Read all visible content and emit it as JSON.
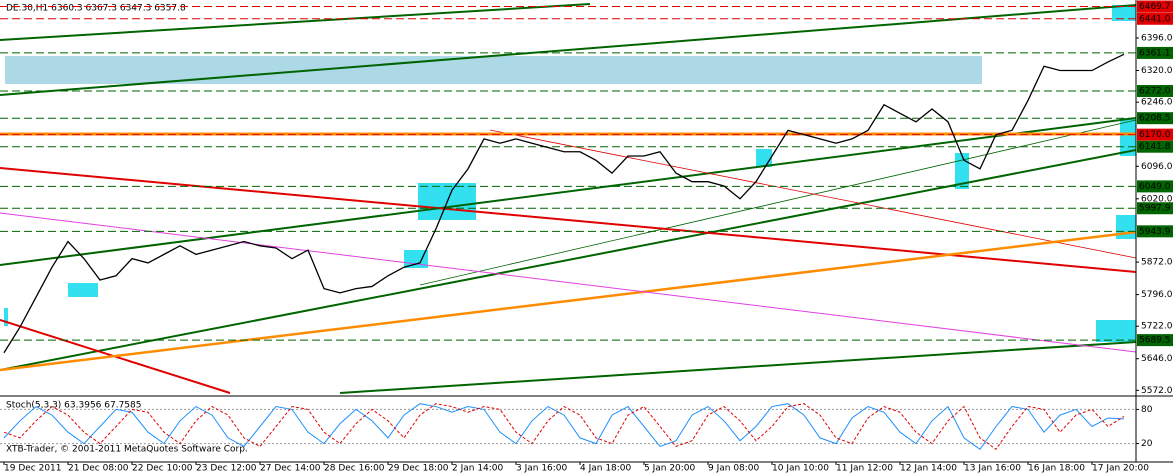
{
  "chart_data": [
    {
      "type": "line",
      "title": "DE.30,H1  6360.3 6367.3 6347.3 6357.8",
      "annotations": [
        "XTB-Trader, © 2001-2011 MetaQuotes Software Corp."
      ],
      "categories": [
        "19 Dec 2011",
        null,
        null,
        null,
        "21 Dec 08:00",
        null,
        null,
        null,
        "22 Dec 10:00",
        null,
        null,
        null,
        "23 Dec 12:00",
        null,
        null,
        null,
        "27 Dec 14:00",
        null,
        null,
        null,
        "28 Dec 16:00",
        null,
        null,
        null,
        "29 Dec 18:00",
        null,
        null,
        null,
        "2 Jan 14:00",
        null,
        null,
        null,
        "3 Jan 16:00",
        null,
        null,
        null,
        "4 Jan 18:00",
        null,
        null,
        null,
        "5 Jan 20:00",
        null,
        null,
        null,
        "9 Jan 08:00",
        null,
        null,
        null,
        "10 Jan 10:00",
        null,
        null,
        null,
        "11 Jan 12:00",
        null,
        null,
        null,
        "12 Jan 14:00",
        null,
        null,
        null,
        "13 Jan 16:00",
        null,
        null,
        null,
        "16 Jan 18:00",
        null,
        null,
        null,
        "17 Jan 20:00",
        null,
        null
      ],
      "series": [
        {
          "color": "#000000",
          "values": [
            5660,
            5720,
            5790,
            5860,
            5920,
            5880,
            5830,
            5840,
            5880,
            5870,
            5890,
            5910,
            5890,
            5900,
            5910,
            5920,
            5910,
            5905,
            5880,
            5900,
            5810,
            5800,
            5810,
            5815,
            5840,
            5860,
            5870,
            5950,
            6040,
            6090,
            6160,
            6150,
            6160,
            6150,
            6140,
            6130,
            6130,
            6110,
            6080,
            6120,
            6120,
            6130,
            6080,
            6060,
            6060,
            6050,
            6020,
            6060,
            6120,
            6180,
            6170,
            6160,
            6150,
            6160,
            6180,
            6240,
            6220,
            6200,
            6230,
            6200,
            6110,
            6090,
            6170,
            6180,
            6250,
            6330,
            6320,
            6320,
            6320,
            6340,
            6357.8
          ]
        }
      ],
      "ylim": [
        5558.8,
        6484.9
      ],
      "yticks": [
        {
          "value": 6396,
          "label": "6396.0"
        },
        {
          "value": 6320,
          "label": "6320.0"
        },
        {
          "value": 6246,
          "label": "6246.0"
        },
        {
          "value": 6096,
          "label": "6096.0"
        },
        {
          "value": 6020,
          "label": "6020.0"
        },
        {
          "value": 5872,
          "label": "5872.0"
        },
        {
          "value": 5796,
          "label": "5796.0"
        },
        {
          "value": 5722,
          "label": "5722.0"
        },
        {
          "value": 5646,
          "label": "5646.0"
        },
        {
          "value": 5572,
          "label": "5572.0"
        }
      ],
      "levels": [
        {
          "value": 6469.7,
          "label": "6469.7",
          "color": "#e00000"
        },
        {
          "value": 6441.0,
          "label": "6441.0",
          "color": "#e00000"
        },
        {
          "value": 6361.1,
          "label": "6361.1",
          "color": "#006400"
        },
        {
          "value": 6272.0,
          "label": "6272.0",
          "color": "#006400"
        },
        {
          "value": 6208.5,
          "label": "6208.5",
          "color": "#006400"
        },
        {
          "value": 6170.0,
          "label": "6170.0",
          "color": "#e00000"
        },
        {
          "value": 6141.8,
          "label": "6141.8",
          "color": "#006400"
        },
        {
          "value": 6049.0,
          "label": "6049.0",
          "color": "#006400"
        },
        {
          "value": 5997.9,
          "label": "5997.9",
          "color": "#006400"
        },
        {
          "value": 5943.9,
          "label": "5943.9",
          "color": "#006400"
        },
        {
          "value": 5689.5,
          "label": "5689.5",
          "color": "#006400"
        }
      ]
    },
    {
      "type": "line",
      "title": "Stoch(5,3,3) 63.3956 67.7585",
      "series": [
        {
          "color": "#1e90ff",
          "values": [
            30,
            60,
            85,
            70,
            40,
            20,
            50,
            80,
            75,
            40,
            20,
            60,
            85,
            70,
            30,
            15,
            50,
            85,
            80,
            40,
            20,
            55,
            80,
            60,
            30,
            70,
            90,
            85,
            75,
            85,
            80,
            40,
            20,
            60,
            85,
            70,
            30,
            20,
            70,
            85,
            50,
            15,
            25,
            70,
            85,
            60,
            25,
            50,
            85,
            90,
            70,
            30,
            20,
            65,
            85,
            75,
            40,
            20,
            60,
            85,
            30,
            10,
            50,
            85,
            80,
            40,
            70,
            80,
            50,
            65,
            63.3956
          ]
        },
        {
          "color": "#e00000",
          "values": [
            40,
            30,
            60,
            85,
            70,
            40,
            20,
            50,
            80,
            75,
            40,
            20,
            60,
            85,
            70,
            30,
            15,
            50,
            85,
            80,
            40,
            20,
            55,
            80,
            60,
            30,
            70,
            90,
            85,
            75,
            85,
            80,
            40,
            20,
            60,
            85,
            70,
            30,
            20,
            70,
            85,
            50,
            15,
            25,
            70,
            85,
            60,
            25,
            50,
            85,
            90,
            70,
            30,
            20,
            65,
            85,
            75,
            40,
            20,
            60,
            85,
            30,
            10,
            50,
            85,
            80,
            40,
            70,
            80,
            50,
            67.7585
          ]
        }
      ],
      "ylim": [
        0,
        100
      ],
      "yticks": [
        80,
        20
      ]
    }
  ]
}
